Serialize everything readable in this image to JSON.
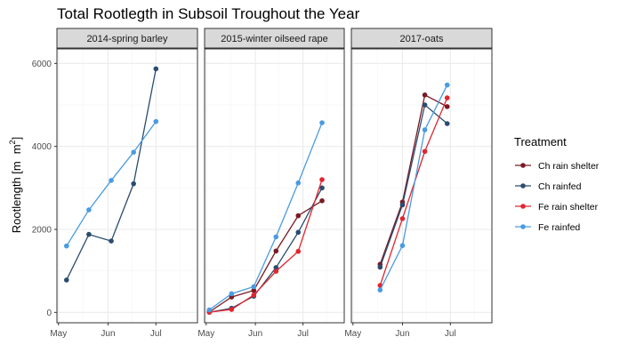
{
  "chart_data": {
    "type": "line",
    "title": "Total Rootlegth in Subsoil Troughout the Year",
    "ylabel": "Rootlength [m",
    "ylabel_unit": "m",
    "ylabel_sup": "2",
    "ylabel_close": "]",
    "xlabel": "",
    "x_ticks": [
      "May",
      "Jun",
      "Jul"
    ],
    "y_ticks": [
      "0",
      "2000",
      "4000",
      "6000"
    ],
    "ylim": [
      -250,
      6350
    ],
    "legend_title": "Treatment",
    "legend_position": "right",
    "grid": true,
    "facets": [
      {
        "label": "2014-spring barley",
        "series": [
          {
            "name": "Ch rainfed",
            "x": [
              "2014-05-06",
              "2014-05-20",
              "2014-06-03",
              "2014-06-17",
              "2014-07-01"
            ],
            "y": [
              780,
              1880,
              1720,
              3100,
              5870
            ]
          },
          {
            "name": "Fe rainfed",
            "x": [
              "2014-05-06",
              "2014-05-20",
              "2014-06-03",
              "2014-06-17",
              "2014-07-01"
            ],
            "y": [
              1600,
              2470,
              3180,
              3860,
              4600
            ]
          }
        ]
      },
      {
        "label": "2015-winter oilseed rape",
        "series": [
          {
            "name": "Ch rain shelter",
            "x": [
              "2015-05-03",
              "2015-05-17",
              "2015-05-31",
              "2015-06-14",
              "2015-06-28",
              "2015-07-13"
            ],
            "y": [
              10,
              370,
              530,
              1480,
              2330,
              2690
            ]
          },
          {
            "name": "Ch rainfed",
            "x": [
              "2015-05-03",
              "2015-05-17",
              "2015-05-31",
              "2015-06-14",
              "2015-06-28",
              "2015-07-13"
            ],
            "y": [
              5,
              100,
              390,
              1080,
              1930,
              3000
            ]
          },
          {
            "name": "Fe rain shelter",
            "x": [
              "2015-05-03",
              "2015-05-17",
              "2015-05-31",
              "2015-06-14",
              "2015-06-28",
              "2015-07-13"
            ],
            "y": [
              5,
              70,
              420,
              990,
              1470,
              3200
            ]
          },
          {
            "name": "Fe rainfed",
            "x": [
              "2015-05-03",
              "2015-05-17",
              "2015-05-31",
              "2015-06-14",
              "2015-06-28",
              "2015-07-13"
            ],
            "y": [
              60,
              450,
              620,
              1820,
              3120,
              4570
            ]
          }
        ]
      },
      {
        "label": "2017-oats",
        "series": [
          {
            "name": "Ch rain shelter",
            "x": [
              "2017-05-18",
              "2017-06-01",
              "2017-06-15",
              "2017-06-29"
            ],
            "y": [
              1160,
              2660,
              5240,
              4960
            ]
          },
          {
            "name": "Ch rainfed",
            "x": [
              "2017-05-18",
              "2017-06-01",
              "2017-06-15",
              "2017-06-29"
            ],
            "y": [
              1090,
              2590,
              5000,
              4550
            ]
          },
          {
            "name": "Fe rain shelter",
            "x": [
              "2017-05-18",
              "2017-06-01",
              "2017-06-15",
              "2017-06-29"
            ],
            "y": [
              650,
              2260,
              3880,
              5170
            ]
          },
          {
            "name": "Fe rainfed",
            "x": [
              "2017-05-18",
              "2017-06-01",
              "2017-06-15",
              "2017-06-29"
            ],
            "y": [
              540,
              1610,
              4400,
              5480
            ]
          }
        ]
      }
    ],
    "legend": [
      {
        "name": "Ch rain shelter",
        "color": "#7a1a23"
      },
      {
        "name": "Ch rainfed",
        "color": "#2b4c6f"
      },
      {
        "name": "Fe rain shelter",
        "color": "#e0262f"
      },
      {
        "name": "Fe rainfed",
        "color": "#4a9be0"
      }
    ],
    "colors": {
      "panel_border": "#333333",
      "strip_fill": "#d9d9d9",
      "grid_major": "#ebebeb",
      "grid_minor": "#f5f5f5"
    }
  }
}
